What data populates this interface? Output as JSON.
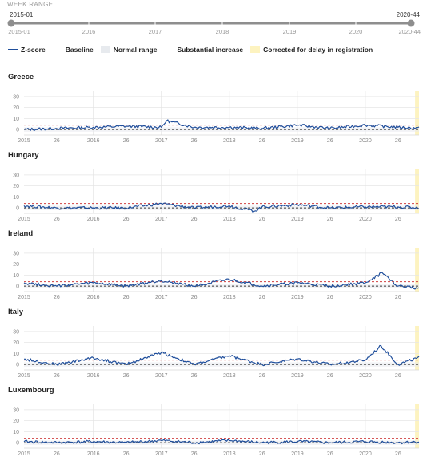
{
  "week_range": {
    "label": "WEEK RANGE",
    "start_value": "2015-01",
    "end_value": "2020-44",
    "axis_labels": [
      "2015-01",
      "2016",
      "2017",
      "2018",
      "2019",
      "2020",
      "2020-44"
    ]
  },
  "legend": {
    "zscore": "Z-score",
    "baseline": "Baseline",
    "normal_range": "Normal range",
    "substantial": "Substantial increase",
    "corrected": "Corrected for delay in registration"
  },
  "colors": {
    "zscore": "#1f4e9b",
    "baseline": "#333333",
    "normal_range": "#e7eaee",
    "substantial": "#d04040",
    "corrected": "#fdf3c0"
  },
  "x_ticks": [
    "2015",
    "26",
    "2016",
    "26",
    "2017",
    "26",
    "2018",
    "26",
    "2019",
    "26",
    "2020",
    "26"
  ],
  "y_ticks": [
    "30",
    "20",
    "10",
    "0"
  ],
  "chart_data": [
    {
      "type": "line",
      "title": "Greece",
      "ylim": [
        -5,
        35
      ],
      "x": [
        "2015-01",
        "2015-26",
        "2016-01",
        "2016-26",
        "2017-01",
        "2017-05",
        "2017-26",
        "2018-01",
        "2018-26",
        "2019-01",
        "2019-26",
        "2020-01",
        "2020-26",
        "2020-44"
      ],
      "series": [
        {
          "name": "Z-score",
          "values": [
            0,
            1,
            2,
            3,
            2,
            8,
            2,
            2,
            1,
            4,
            1,
            4,
            2,
            1
          ]
        },
        {
          "name": "Baseline",
          "values": [
            0,
            0,
            0,
            0,
            0,
            0,
            0,
            0,
            0,
            0,
            0,
            0,
            0,
            0
          ]
        },
        {
          "name": "Substantial increase",
          "values": [
            4,
            4,
            4,
            4,
            4,
            4,
            4,
            4,
            4,
            4,
            4,
            4,
            4,
            4
          ]
        }
      ]
    },
    {
      "type": "line",
      "title": "Hungary",
      "ylim": [
        -5,
        35
      ],
      "x": [
        "2015-01",
        "2015-26",
        "2016-01",
        "2016-26",
        "2017-01",
        "2017-26",
        "2018-01",
        "2018-20",
        "2018-26",
        "2019-01",
        "2019-26",
        "2020-01",
        "2020-26",
        "2020-44"
      ],
      "series": [
        {
          "name": "Z-score",
          "values": [
            2,
            0,
            0,
            0,
            4,
            0,
            2,
            -3,
            1,
            3,
            0,
            1,
            1,
            0
          ]
        },
        {
          "name": "Baseline",
          "values": [
            0,
            0,
            0,
            0,
            0,
            0,
            0,
            0,
            0,
            0,
            0,
            0,
            0,
            0
          ]
        },
        {
          "name": "Substantial increase",
          "values": [
            4,
            4,
            4,
            4,
            4,
            4,
            4,
            4,
            4,
            4,
            4,
            4,
            4,
            4
          ]
        }
      ]
    },
    {
      "type": "line",
      "title": "Ireland",
      "ylim": [
        -5,
        35
      ],
      "x": [
        "2015-01",
        "2015-26",
        "2016-01",
        "2016-26",
        "2017-01",
        "2017-26",
        "2018-01",
        "2018-26",
        "2019-01",
        "2019-26",
        "2020-01",
        "2020-14",
        "2020-26",
        "2020-44"
      ],
      "series": [
        {
          "name": "Z-score",
          "values": [
            3,
            0,
            3,
            0,
            5,
            0,
            6,
            0,
            3,
            0,
            3,
            12,
            0,
            -2
          ]
        },
        {
          "name": "Baseline",
          "values": [
            0,
            0,
            0,
            0,
            0,
            0,
            0,
            0,
            0,
            0,
            0,
            0,
            0,
            0
          ]
        },
        {
          "name": "Substantial increase",
          "values": [
            4,
            4,
            4,
            4,
            4,
            4,
            4,
            4,
            4,
            4,
            4,
            4,
            4,
            4
          ]
        }
      ]
    },
    {
      "type": "line",
      "title": "Italy",
      "ylim": [
        -5,
        35
      ],
      "x": [
        "2015-01",
        "2015-26",
        "2016-01",
        "2016-26",
        "2017-01",
        "2017-26",
        "2018-01",
        "2018-26",
        "2019-01",
        "2019-26",
        "2020-01",
        "2020-13",
        "2020-26",
        "2020-44"
      ],
      "series": [
        {
          "name": "Z-score",
          "values": [
            5,
            0,
            6,
            0,
            11,
            0,
            8,
            0,
            5,
            0,
            4,
            17,
            0,
            7
          ]
        },
        {
          "name": "Baseline",
          "values": [
            0,
            0,
            0,
            0,
            0,
            0,
            0,
            0,
            0,
            0,
            0,
            0,
            0,
            0
          ]
        },
        {
          "name": "Substantial increase",
          "values": [
            4,
            4,
            4,
            4,
            4,
            4,
            4,
            4,
            4,
            4,
            4,
            4,
            4,
            4
          ]
        }
      ]
    },
    {
      "type": "line",
      "title": "Luxembourg",
      "ylim": [
        -5,
        35
      ],
      "x": [
        "2015-01",
        "2015-26",
        "2016-01",
        "2016-26",
        "2017-01",
        "2017-26",
        "2018-01",
        "2018-26",
        "2019-01",
        "2019-26",
        "2020-01",
        "2020-26",
        "2020-44"
      ],
      "series": [
        {
          "name": "Z-score",
          "values": [
            1,
            0,
            1,
            0,
            2,
            0,
            2,
            0,
            1,
            0,
            1,
            0,
            1
          ]
        },
        {
          "name": "Baseline",
          "values": [
            0,
            0,
            0,
            0,
            0,
            0,
            0,
            0,
            0,
            0,
            0,
            0,
            0
          ]
        },
        {
          "name": "Substantial increase",
          "values": [
            4,
            4,
            4,
            4,
            4,
            4,
            4,
            4,
            4,
            4,
            4,
            4,
            4
          ]
        }
      ]
    }
  ]
}
